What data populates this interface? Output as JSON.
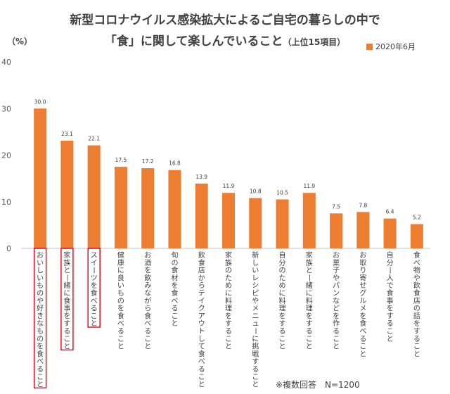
{
  "title_line1": "新型コロナウイルス感染拡大によるご自宅の暮らしの中で",
  "title_line2": "「食」に関して楽しんでいること",
  "title_sub": "（上位15項目）",
  "note": "※複数回答　N=1200",
  "colors": {
    "bar": "#ed7d31",
    "highlight": "#e0001a",
    "axis": "#bfbfbf"
  },
  "chart_data": {
    "type": "bar",
    "title": "新型コロナウイルス感染拡大によるご自宅の暮らしの中で「食」に関して楽しんでいること（上位15項目）",
    "ylabel": "（%）",
    "ylim": [
      0,
      40
    ],
    "yticks": [
      0,
      10,
      20,
      30,
      40
    ],
    "legend": {
      "label": "2020年6月",
      "position": "top-right"
    },
    "categories": [
      "おいしいものや好きなものを食べること",
      "家族と一緒に食事をすること",
      "スイーツを食べること",
      "健康に良いものを食べること",
      "お酒を飲みながら食べること",
      "旬の食材を食べること",
      "飲食店からテイクアウトして食べること",
      "家族のために料理をすること",
      "新しいレシピやメニューに挑戦すること",
      "自分のために料理をすること",
      "家族と一緒に料理をすること",
      "お菓子やパンなどを作ること",
      "お取り寄せグルメを食べること",
      "自分一人で食事をすること",
      "食べ物や飲食店の話をすること"
    ],
    "series": [
      {
        "name": "2020年6月",
        "values": [
          30.0,
          23.1,
          22.1,
          17.5,
          17.2,
          16.8,
          13.9,
          11.9,
          10.8,
          10.5,
          11.9,
          7.5,
          7.8,
          6.4,
          5.2
        ],
        "labels": [
          "30.0",
          "23.1",
          "22.1",
          "17.5",
          "17.2",
          "16.8",
          "13.9",
          "11.9",
          "10.8",
          "10.5",
          "11.9",
          "7.5",
          "7.8",
          "6.4",
          "5.2"
        ]
      }
    ],
    "highlighted": [
      0,
      1,
      2
    ]
  }
}
